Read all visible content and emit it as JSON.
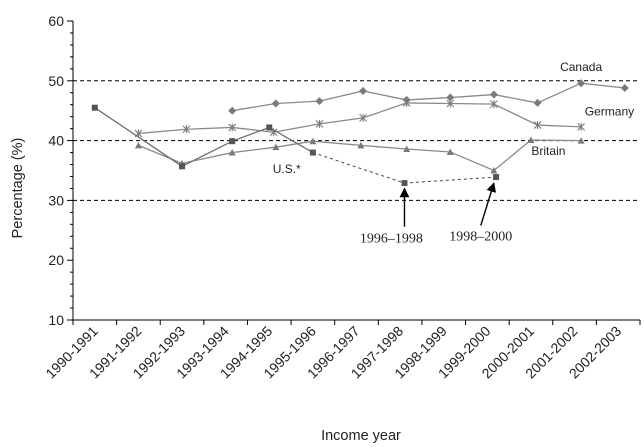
{
  "chart_data": {
    "type": "line",
    "xlabel": "Income year",
    "ylabel": "Percentage (%)",
    "ylim": [
      10,
      60
    ],
    "yticks": [
      10,
      20,
      30,
      40,
      50,
      60
    ],
    "grid": "dashed horizontal lines at 30, 40, 50",
    "categories": [
      "1990-1991",
      "1991-1992",
      "1992-1993",
      "1993-1994",
      "1994-1995",
      "1995-1996",
      "1996-1997",
      "1997-1998",
      "1998-1999",
      "1999-2000",
      "2000-2001",
      "2001-2002",
      "2002-2003"
    ],
    "series": [
      {
        "name": "Canada",
        "marker": "diamond",
        "color": "#7a7a7a",
        "points": [
          [
            3.15,
            45.0
          ],
          [
            4.15,
            46.2
          ],
          [
            5.15,
            46.6
          ],
          [
            6.15,
            48.3
          ],
          [
            7.15,
            46.8
          ],
          [
            8.15,
            47.2
          ],
          [
            9.15,
            47.7
          ],
          [
            10.15,
            46.3
          ],
          [
            11.15,
            49.6
          ],
          [
            12.15,
            48.8
          ]
        ]
      },
      {
        "name": "Germany",
        "marker": "asterisk",
        "color": "#7a7a7a",
        "points": [
          [
            1.0,
            41.2
          ],
          [
            2.1,
            41.9
          ],
          [
            3.15,
            42.2
          ],
          [
            4.1,
            41.4
          ],
          [
            5.15,
            42.8
          ],
          [
            6.15,
            43.8
          ],
          [
            7.15,
            46.3
          ],
          [
            8.15,
            46.2
          ],
          [
            9.15,
            46.1
          ],
          [
            10.15,
            42.6
          ],
          [
            11.15,
            42.3
          ]
        ]
      },
      {
        "name": "Britain",
        "marker": "triangle",
        "color": "#7a7a7a",
        "points": [
          [
            1.0,
            39.2
          ],
          [
            2.0,
            36.2
          ],
          [
            3.15,
            38.0
          ],
          [
            4.15,
            38.9
          ],
          [
            5.0,
            39.9
          ],
          [
            6.1,
            39.2
          ],
          [
            7.15,
            38.6
          ],
          [
            8.15,
            38.1
          ],
          [
            9.15,
            35.0
          ],
          [
            10.0,
            40.1
          ],
          [
            11.15,
            40.0
          ]
        ]
      },
      {
        "name": "U.S.*",
        "marker": "square",
        "color": "#555555",
        "points": [
          [
            0.0,
            45.5
          ],
          [
            2.0,
            35.7
          ],
          [
            3.15,
            39.9
          ],
          [
            4.0,
            42.2
          ],
          [
            5.0,
            38.0
          ],
          [
            7.1,
            32.9
          ],
          [
            9.2,
            33.9
          ]
        ],
        "dashed_from_index": 4
      }
    ],
    "series_labels": [
      {
        "text": "Canada",
        "x": 11.15,
        "y": 51.6,
        "series": "Canada"
      },
      {
        "text": "Germany",
        "x": 11.8,
        "y": 44.2,
        "series": "Germany"
      },
      {
        "text": "Britain",
        "x": 10.4,
        "y": 37.6,
        "series": "Britain"
      },
      {
        "text": "U.S.*",
        "x": 4.4,
        "y": 34.6,
        "series": "U.S.*"
      }
    ],
    "annotations": [
      {
        "text": "1996–1998",
        "x": 6.8,
        "y": 23.0,
        "arrow_from": [
          7.1,
          25.6
        ],
        "arrow_to": [
          7.1,
          32.0
        ]
      },
      {
        "text": "1998–2000",
        "x": 8.85,
        "y": 23.3,
        "arrow_from": [
          8.85,
          25.8
        ],
        "arrow_to": [
          9.15,
          32.9
        ]
      }
    ]
  }
}
